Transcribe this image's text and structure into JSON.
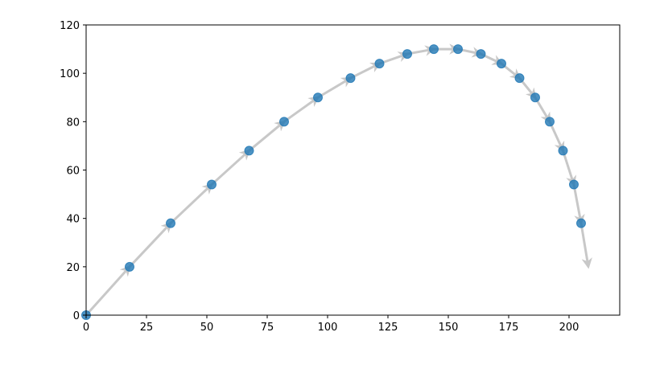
{
  "chart_data": {
    "type": "scatter",
    "title": "",
    "xlabel": "",
    "ylabel": "",
    "xlim": [
      0,
      221
    ],
    "ylim": [
      0,
      120
    ],
    "grid": false,
    "x_ticks": [
      "0",
      "25",
      "50",
      "75",
      "100",
      "125",
      "150",
      "175",
      "200"
    ],
    "y_ticks": [
      "0",
      "20",
      "40",
      "60",
      "80",
      "100",
      "120"
    ],
    "x": [
      0,
      18,
      35,
      52,
      67.5,
      82,
      96,
      109.5,
      121.5,
      133,
      144,
      154,
      163.5,
      172,
      179.5,
      186,
      192,
      197.5,
      202,
      205
    ],
    "y": [
      0,
      20,
      38,
      54,
      68,
      80,
      90,
      98,
      104,
      108,
      110,
      110,
      108,
      104,
      98,
      90,
      80,
      68,
      54,
      38
    ],
    "arrows_u": [
      18,
      17,
      17,
      15.5,
      14.5,
      14,
      13.5,
      12,
      11.5,
      11,
      10,
      9.5,
      8.5,
      7.5,
      6.5,
      6,
      5.5,
      4.5,
      3,
      3
    ],
    "arrows_v": [
      20,
      18,
      16,
      14,
      12,
      10,
      8,
      6,
      4,
      2,
      0,
      -2,
      -4,
      -6,
      -8,
      -10,
      -12,
      -14,
      -16,
      -18
    ],
    "colors": {
      "points": "#1f77b4",
      "arrows": "#c8c8c8"
    }
  }
}
